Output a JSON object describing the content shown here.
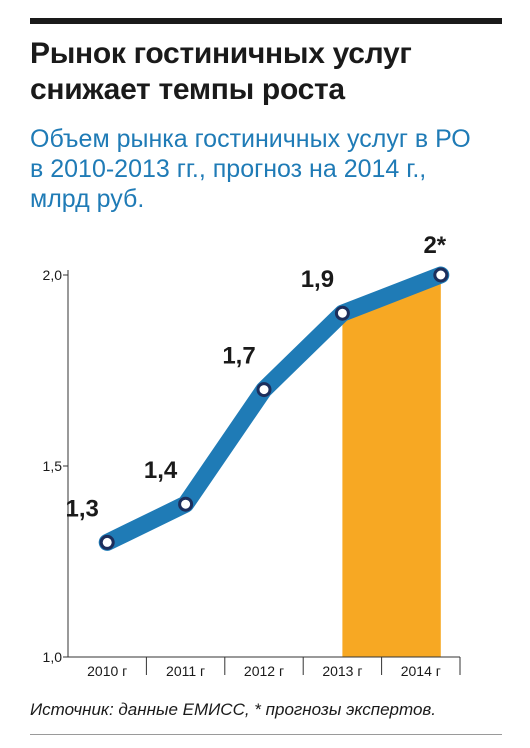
{
  "title_line1": "Рынок гостиничных услуг",
  "title_line2": "снижает темпы роста",
  "subtitle_line1": "Объем рынка гостиничных услуг в РО",
  "subtitle_line2": "в 2010-2013 гг., прогноз на 2014 г.,",
  "subtitle_line3": "млрд руб.",
  "source": "Источник: данные ЕМИСС, * прогнозы экспертов.",
  "colors": {
    "line": "#1f7bb6",
    "forecast_fill": "#f7a823",
    "marker_fill": "#ffffff",
    "marker_stroke": "#1c2e5c"
  },
  "chart_data": {
    "type": "line",
    "categories": [
      "2010 г",
      "2011 г",
      "2012 г",
      "2013 г",
      "2014 г"
    ],
    "values": [
      1.3,
      1.4,
      1.7,
      1.9,
      2.0
    ],
    "data_labels": [
      "1,3",
      "1,4",
      "1,7",
      "1,9",
      "2*"
    ],
    "forecast_category": "2014 г",
    "ylim": [
      1.0,
      2.0
    ],
    "yticks": [
      1.0,
      1.5,
      2.0
    ],
    "ytick_labels": [
      "1,0",
      "1,5",
      "2,0"
    ],
    "grid": false,
    "legend": "none"
  }
}
